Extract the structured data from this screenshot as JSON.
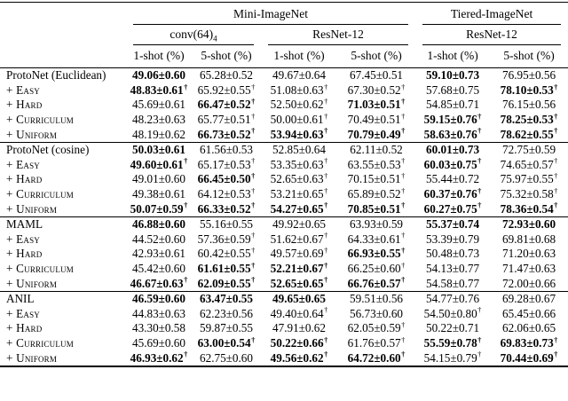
{
  "symbols": {
    "dagger": "†"
  },
  "table": {
    "datasets": [
      {
        "label": "Mini-ImageNet",
        "span": 4
      },
      {
        "label": "Tiered-ImageNet",
        "span": 2
      }
    ],
    "architectures": [
      {
        "label": "conv(64)",
        "subscript": "4",
        "span": 2
      },
      {
        "label": "ResNet-12",
        "subscript": "",
        "span": 2
      },
      {
        "label": "ResNet-12",
        "subscript": "",
        "span": 2
      }
    ],
    "shot_headers": [
      "1-shot (%)",
      "5-shot (%)",
      "1-shot (%)",
      "5-shot (%)",
      "1-shot (%)",
      "5-shot (%)"
    ],
    "blocks": [
      {
        "rows": [
          {
            "label": "ProtoNet (Euclidean)",
            "smallcaps": false,
            "cells": [
              [
                "49.06±0.60",
                1,
                0
              ],
              [
                "65.28±0.52",
                0,
                0
              ],
              [
                "49.67±0.64",
                0,
                0
              ],
              [
                "67.45±0.51",
                0,
                0
              ],
              [
                "59.10±0.73",
                1,
                0
              ],
              [
                "76.95±0.56",
                0,
                0
              ]
            ]
          },
          {
            "label": "+ Easy",
            "smallcaps": true,
            "cells": [
              [
                "48.83±0.61",
                1,
                1
              ],
              [
                "65.92±0.55",
                0,
                1
              ],
              [
                "51.08±0.63",
                0,
                1
              ],
              [
                "67.30±0.52",
                0,
                1
              ],
              [
                "57.68±0.75",
                0,
                0
              ],
              [
                "78.10±0.53",
                1,
                1
              ]
            ]
          },
          {
            "label": "+ Hard",
            "smallcaps": true,
            "cells": [
              [
                "45.69±0.61",
                0,
                0
              ],
              [
                "66.47±0.52",
                1,
                1
              ],
              [
                "52.50±0.62",
                0,
                1
              ],
              [
                "71.03±0.51",
                1,
                1
              ],
              [
                "54.85±0.71",
                0,
                0
              ],
              [
                "76.15±0.56",
                0,
                0
              ]
            ]
          },
          {
            "label": "+ Curriculum",
            "smallcaps": true,
            "cells": [
              [
                "48.23±0.63",
                0,
                0
              ],
              [
                "65.77±0.51",
                0,
                1
              ],
              [
                "50.00±0.61",
                0,
                1
              ],
              [
                "70.49±0.51",
                0,
                1
              ],
              [
                "59.15±0.76",
                1,
                1
              ],
              [
                "78.25±0.53",
                1,
                1
              ]
            ]
          },
          {
            "label": "+ Uniform",
            "smallcaps": true,
            "cells": [
              [
                "48.19±0.62",
                0,
                0
              ],
              [
                "66.73±0.52",
                1,
                1
              ],
              [
                "53.94±0.63",
                1,
                1
              ],
              [
                "70.79±0.49",
                1,
                1
              ],
              [
                "58.63±0.76",
                1,
                1
              ],
              [
                "78.62±0.55",
                1,
                1
              ]
            ]
          }
        ]
      },
      {
        "rows": [
          {
            "label": "ProtoNet (cosine)",
            "smallcaps": false,
            "cells": [
              [
                "50.03±0.61",
                1,
                0
              ],
              [
                "61.56±0.53",
                0,
                0
              ],
              [
                "52.85±0.64",
                0,
                0
              ],
              [
                "62.11±0.52",
                0,
                0
              ],
              [
                "60.01±0.73",
                1,
                0
              ],
              [
                "72.75±0.59",
                0,
                0
              ]
            ]
          },
          {
            "label": "+ Easy",
            "smallcaps": true,
            "cells": [
              [
                "49.60±0.61",
                1,
                1
              ],
              [
                "65.17±0.53",
                0,
                1
              ],
              [
                "53.35±0.63",
                0,
                1
              ],
              [
                "63.55±0.53",
                0,
                1
              ],
              [
                "60.03±0.75",
                1,
                1
              ],
              [
                "74.65±0.57",
                0,
                1
              ]
            ]
          },
          {
            "label": "+ Hard",
            "smallcaps": true,
            "cells": [
              [
                "49.01±0.60",
                0,
                0
              ],
              [
                "66.45±0.50",
                1,
                1
              ],
              [
                "52.65±0.63",
                0,
                1
              ],
              [
                "70.15±0.51",
                0,
                1
              ],
              [
                "55.44±0.72",
                0,
                0
              ],
              [
                "75.97±0.55",
                0,
                1
              ]
            ]
          },
          {
            "label": "+ Curriculum",
            "smallcaps": true,
            "cells": [
              [
                "49.38±0.61",
                0,
                0
              ],
              [
                "64.12±0.53",
                0,
                1
              ],
              [
                "53.21±0.65",
                0,
                1
              ],
              [
                "65.89±0.52",
                0,
                1
              ],
              [
                "60.37±0.76",
                1,
                1
              ],
              [
                "75.32±0.58",
                0,
                1
              ]
            ]
          },
          {
            "label": "+ Uniform",
            "smallcaps": true,
            "cells": [
              [
                "50.07±0.59",
                1,
                1
              ],
              [
                "66.33±0.52",
                1,
                1
              ],
              [
                "54.27±0.65",
                1,
                1
              ],
              [
                "70.85±0.51",
                1,
                1
              ],
              [
                "60.27±0.75",
                1,
                1
              ],
              [
                "78.36±0.54",
                1,
                1
              ]
            ]
          }
        ]
      },
      {
        "rows": [
          {
            "label": "MAML",
            "smallcaps": false,
            "cells": [
              [
                "46.88±0.60",
                1,
                0
              ],
              [
                "55.16±0.55",
                0,
                0
              ],
              [
                "49.92±0.65",
                0,
                0
              ],
              [
                "63.93±0.59",
                0,
                0
              ],
              [
                "55.37±0.74",
                1,
                0
              ],
              [
                "72.93±0.60",
                1,
                0
              ]
            ]
          },
          {
            "label": "+ Easy",
            "smallcaps": true,
            "cells": [
              [
                "44.52±0.60",
                0,
                0
              ],
              [
                "57.36±0.59",
                0,
                1
              ],
              [
                "51.62±0.67",
                0,
                1
              ],
              [
                "64.33±0.61",
                0,
                1
              ],
              [
                "53.39±0.79",
                0,
                0
              ],
              [
                "69.81±0.68",
                0,
                0
              ]
            ]
          },
          {
            "label": "+ Hard",
            "smallcaps": true,
            "cells": [
              [
                "42.93±0.61",
                0,
                0
              ],
              [
                "60.42±0.55",
                0,
                1
              ],
              [
                "49.57±0.69",
                0,
                1
              ],
              [
                "66.93±0.55",
                1,
                1
              ],
              [
                "50.48±0.73",
                0,
                0
              ],
              [
                "71.20±0.63",
                0,
                0
              ]
            ]
          },
          {
            "label": "+ Curriculum",
            "smallcaps": true,
            "cells": [
              [
                "45.42±0.60",
                0,
                0
              ],
              [
                "61.61±0.55",
                1,
                1
              ],
              [
                "52.21±0.67",
                1,
                1
              ],
              [
                "66.25±0.60",
                0,
                1
              ],
              [
                "54.13±0.77",
                0,
                0
              ],
              [
                "71.47±0.63",
                0,
                0
              ]
            ]
          },
          {
            "label": "+ Uniform",
            "smallcaps": true,
            "cells": [
              [
                "46.67±0.63",
                1,
                1
              ],
              [
                "62.09±0.55",
                1,
                1
              ],
              [
                "52.65±0.65",
                1,
                1
              ],
              [
                "66.76±0.57",
                1,
                1
              ],
              [
                "54.58±0.77",
                0,
                0
              ],
              [
                "72.00±0.66",
                0,
                0
              ]
            ]
          }
        ]
      },
      {
        "rows": [
          {
            "label": "ANIL",
            "smallcaps": false,
            "cells": [
              [
                "46.59±0.60",
                1,
                0
              ],
              [
                "63.47±0.55",
                1,
                0
              ],
              [
                "49.65±0.65",
                1,
                0
              ],
              [
                "59.51±0.56",
                0,
                0
              ],
              [
                "54.77±0.76",
                0,
                0
              ],
              [
                "69.28±0.67",
                0,
                0
              ]
            ]
          },
          {
            "label": "+ Easy",
            "smallcaps": true,
            "cells": [
              [
                "44.83±0.63",
                0,
                0
              ],
              [
                "62.23±0.56",
                0,
                0
              ],
              [
                "49.40±0.64",
                0,
                1
              ],
              [
                "56.73±0.60",
                0,
                0
              ],
              [
                "54.50±0.80",
                0,
                1
              ],
              [
                "65.45±0.66",
                0,
                0
              ]
            ]
          },
          {
            "label": "+ Hard",
            "smallcaps": true,
            "cells": [
              [
                "43.30±0.58",
                0,
                0
              ],
              [
                "59.87±0.55",
                0,
                0
              ],
              [
                "47.91±0.62",
                0,
                0
              ],
              [
                "62.05±0.59",
                0,
                1
              ],
              [
                "50.22±0.71",
                0,
                0
              ],
              [
                "62.06±0.65",
                0,
                0
              ]
            ]
          },
          {
            "label": "+ Curriculum",
            "smallcaps": true,
            "cells": [
              [
                "45.69±0.60",
                0,
                0
              ],
              [
                "63.00±0.54",
                1,
                1
              ],
              [
                "50.22±0.66",
                1,
                1
              ],
              [
                "61.76±0.57",
                0,
                1
              ],
              [
                "55.59±0.78",
                1,
                1
              ],
              [
                "69.83±0.73",
                1,
                1
              ]
            ]
          },
          {
            "label": "+ Uniform",
            "smallcaps": true,
            "cells": [
              [
                "46.93±0.62",
                1,
                1
              ],
              [
                "62.75±0.60",
                0,
                0
              ],
              [
                "49.56±0.62",
                1,
                1
              ],
              [
                "64.72±0.60",
                1,
                1
              ],
              [
                "54.15±0.79",
                0,
                1
              ],
              [
                "70.44±0.69",
                1,
                1
              ]
            ]
          }
        ]
      }
    ]
  }
}
